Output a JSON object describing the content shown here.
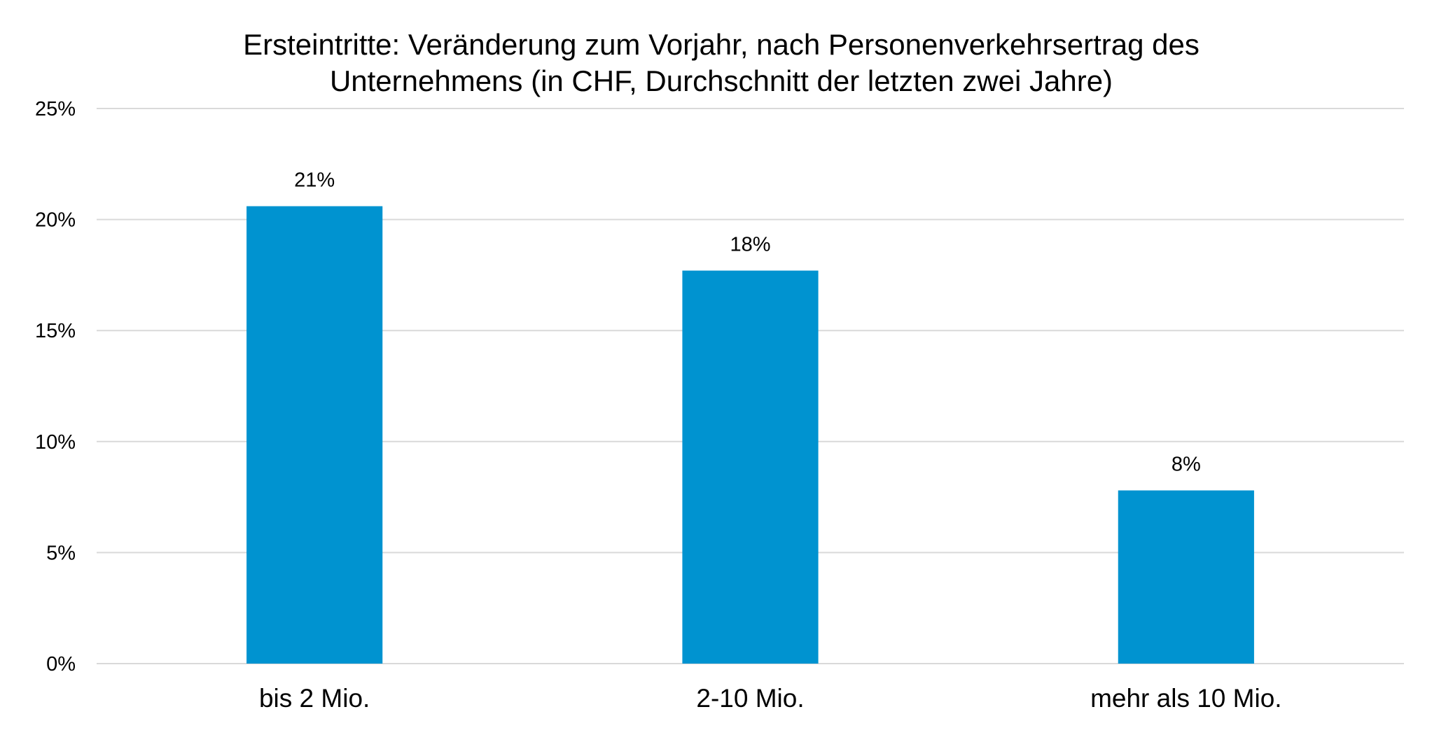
{
  "chart_data": {
    "type": "bar",
    "title_lines": [
      "Ersteintritte: Veränderung zum Vorjahr, nach Personenverkehrsertrag des",
      "Unternehmens (in CHF, Durchschnitt der letzten zwei Jahre)"
    ],
    "categories": [
      "bis 2 Mio.",
      "2-10 Mio.",
      "mehr als 10 Mio."
    ],
    "values": [
      20.6,
      17.7,
      7.8
    ],
    "data_labels": [
      "21%",
      "18%",
      "8%"
    ],
    "y_ticks": [
      0,
      5,
      10,
      15,
      20,
      25
    ],
    "y_tick_labels": [
      "0%",
      "5%",
      "10%",
      "15%",
      "20%",
      "25%"
    ],
    "ylim": [
      0,
      25
    ],
    "y_unit": "%",
    "xlabel": "",
    "ylabel": "",
    "grid": true,
    "legend": "none",
    "colors": {
      "bar": "#0093d0",
      "grid": "#d9d9d9",
      "text": "#000000"
    }
  }
}
